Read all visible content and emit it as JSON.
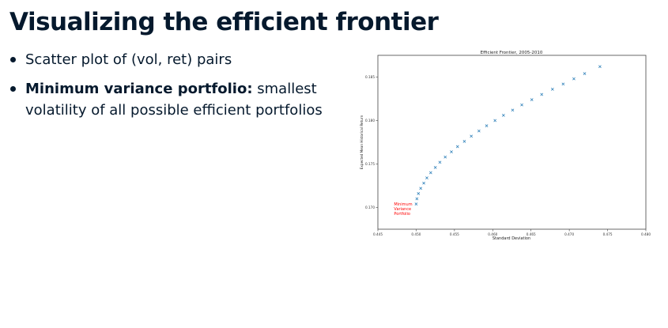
{
  "slide": {
    "title": "Visualizing the efficient frontier",
    "bullets": [
      {
        "bold": "",
        "text": "Scatter plot of (vol, ret) pairs"
      },
      {
        "bold": "Minimum variance portfolio:",
        "text": " smallest volatility of all possible efficient portfolios"
      }
    ]
  },
  "chart_data": {
    "type": "scatter",
    "title": "Efficient Frontier, 2005-2010",
    "xlabel": "Standard Deviation",
    "ylabel": "Expected Mean Historical Return",
    "xlim": [
      0.445,
      0.48
    ],
    "ylim": [
      0.1675,
      0.1875
    ],
    "xticks": [
      "0.445",
      "0.450",
      "0.455",
      "0.460",
      "0.465",
      "0.470",
      "0.475",
      "0.480"
    ],
    "yticks": [
      "0.165",
      "0.170",
      "0.175",
      "0.180",
      "0.185",
      "0.190"
    ],
    "grid": false,
    "marker": "x",
    "color": "#1f77b4",
    "series": [
      {
        "name": "",
        "x": [
          0.45,
          0.4501,
          0.4503,
          0.4506,
          0.451,
          0.4514,
          0.4519,
          0.4525,
          0.4531,
          0.4538,
          0.4546,
          0.4554,
          0.4563,
          0.4572,
          0.4582,
          0.4592,
          0.4603,
          0.4614,
          0.4626,
          0.4638,
          0.4651,
          0.4664,
          0.4678,
          0.4692,
          0.4706,
          0.472,
          0.474
        ],
        "y": [
          0.1704,
          0.171,
          0.1716,
          0.1722,
          0.1728,
          0.1734,
          0.174,
          0.1746,
          0.1752,
          0.1758,
          0.1764,
          0.177,
          0.1776,
          0.1782,
          0.1788,
          0.1794,
          0.18,
          0.1806,
          0.1812,
          0.1818,
          0.1824,
          0.183,
          0.1836,
          0.1842,
          0.1848,
          0.1854,
          0.1862
        ]
      }
    ],
    "annotations": [
      {
        "lines": [
          "Minimum",
          "Variance",
          "Portfolio"
        ],
        "color": "#ff0000"
      }
    ]
  }
}
